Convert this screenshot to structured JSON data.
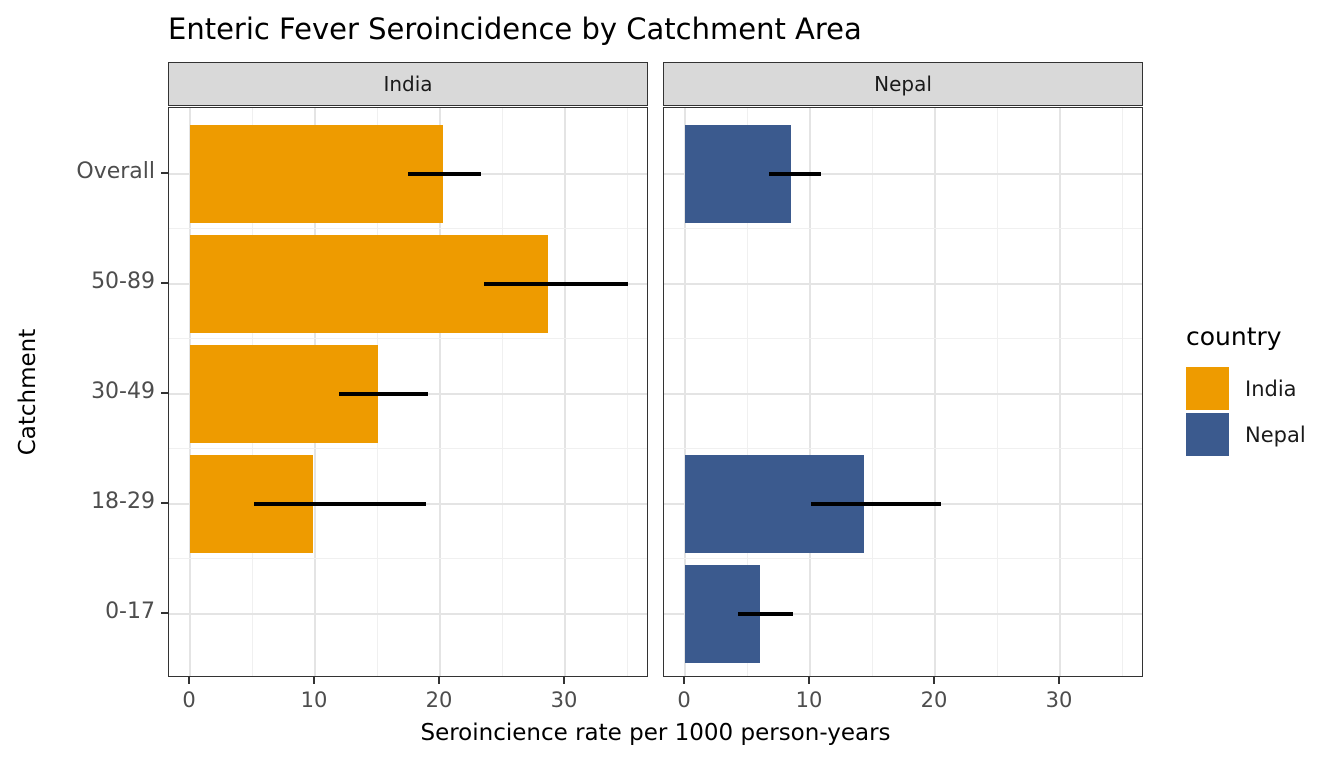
{
  "chart_data": {
    "type": "bar",
    "orientation": "horizontal",
    "title": "Enteric Fever Seroincidence by Catchment Area",
    "xlabel": "Seroincience rate per 1000 person-years",
    "ylabel": "Catchment",
    "categories": [
      "Overall",
      "50-89",
      "30-49",
      "18-29",
      "0-17"
    ],
    "x_ticks": [
      0,
      10,
      20,
      30
    ],
    "x_minor_gridlines": [
      5,
      15,
      25,
      35
    ],
    "xlim": [
      0,
      36.8
    ],
    "grid": "on",
    "legend_position": "right",
    "facets": [
      {
        "label": "India",
        "color": "#EE9B00",
        "values": [
          {
            "category": "Overall",
            "rate": 20.2,
            "ci_low": 17.4,
            "ci_high": 23.3
          },
          {
            "category": "50-89",
            "rate": 28.6,
            "ci_low": 23.5,
            "ci_high": 35.0
          },
          {
            "category": "30-49",
            "rate": 15.0,
            "ci_low": 11.9,
            "ci_high": 19.0
          },
          {
            "category": "18-29",
            "rate": 9.8,
            "ci_low": 5.1,
            "ci_high": 18.9
          },
          {
            "category": "0-17",
            "rate": null,
            "ci_low": null,
            "ci_high": null
          }
        ]
      },
      {
        "label": "Nepal",
        "color": "#3B5A8E",
        "values": [
          {
            "category": "Overall",
            "rate": 8.5,
            "ci_low": 6.7,
            "ci_high": 10.9
          },
          {
            "category": "50-89",
            "rate": null,
            "ci_low": null,
            "ci_high": null
          },
          {
            "category": "30-49",
            "rate": null,
            "ci_low": null,
            "ci_high": null
          },
          {
            "category": "18-29",
            "rate": 14.3,
            "ci_low": 10.1,
            "ci_high": 20.5
          },
          {
            "category": "0-17",
            "rate": 6.0,
            "ci_low": 4.2,
            "ci_high": 8.6
          }
        ]
      }
    ],
    "legend": {
      "title": "country",
      "entries": [
        {
          "label": "India",
          "color": "#EE9B00"
        },
        {
          "label": "Nepal",
          "color": "#3B5A8E"
        }
      ]
    }
  }
}
